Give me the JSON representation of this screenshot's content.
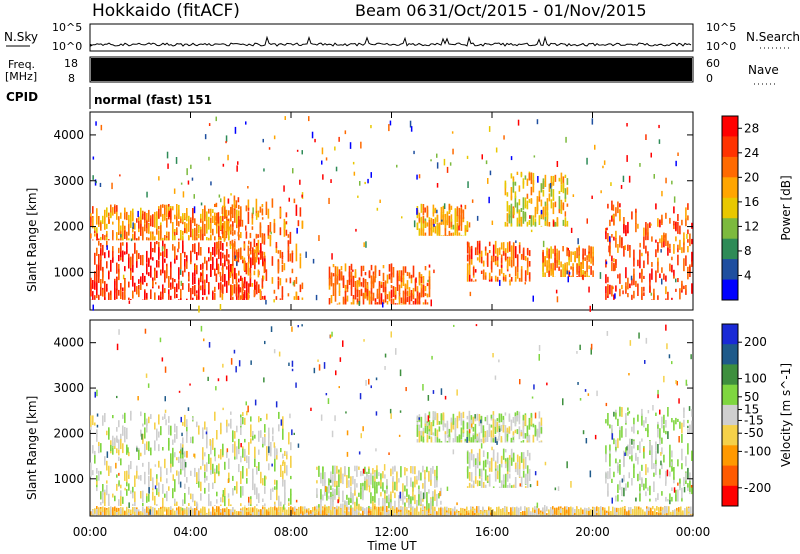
{
  "header": {
    "station": "Hokkaido (fitACF)",
    "beam": "Beam 06",
    "date_range": "31/Oct/2015 - 01/Nov/2015"
  },
  "top_panels": {
    "nsky_label": "N.Sky",
    "nsearch_label": "N.Search",
    "noise_ticks_left": [
      "10^5",
      "10^0"
    ],
    "noise_ticks_right": [
      "10^5",
      "10^0"
    ],
    "freq_label_line1": "Freq.",
    "freq_label_line2": "[MHz]",
    "freq_ticks": [
      "18",
      "8"
    ],
    "nave_label": "Nave",
    "nave_ticks": [
      "60",
      "0"
    ],
    "cpid_label": "CPID",
    "cpid_text": "normal (fast) 151"
  },
  "colors": {
    "power_scale": [
      "#0000ff",
      "#1f4f9f",
      "#2e8b57",
      "#7cba3e",
      "#e8c800",
      "#ffa500",
      "#ff6a00",
      "#ff3300",
      "#ff0000"
    ],
    "velocity_scale": [
      "#1a2ad6",
      "#1f5a8a",
      "#3e8f3e",
      "#7fd640",
      "#cfcfcf",
      "#f5d14a",
      "#ff9900",
      "#ff5a00",
      "#ff0000"
    ]
  },
  "chart_data": [
    {
      "type": "heatmap",
      "title": "Power",
      "xlabel": "Time UT",
      "ylabel": "Slant Range [km]",
      "x_ticks": [
        "00:00",
        "04:00",
        "08:00",
        "12:00",
        "16:00",
        "20:00",
        "00:00"
      ],
      "y_ticks": [
        1000,
        2000,
        3000,
        4000
      ],
      "ylim": [
        180,
        4500
      ],
      "colorbar": {
        "label": "Power [dB]",
        "ticks": [
          4,
          8,
          12,
          16,
          20,
          24,
          28
        ],
        "range": [
          0,
          30
        ]
      },
      "regions": [
        {
          "t": [
            0.0,
            7.0
          ],
          "r": [
            400,
            1700
          ],
          "value": 26
        },
        {
          "t": [
            0.0,
            6.0
          ],
          "r": [
            1700,
            2500
          ],
          "value": 20
        },
        {
          "t": [
            5.0,
            8.5
          ],
          "r": [
            400,
            2700
          ],
          "value": 22
        },
        {
          "t": [
            9.5,
            13.5
          ],
          "r": [
            300,
            1200
          ],
          "value": 22
        },
        {
          "t": [
            13.0,
            15.0
          ],
          "r": [
            1800,
            2500
          ],
          "value": 18
        },
        {
          "t": [
            15.0,
            17.5
          ],
          "r": [
            800,
            1700
          ],
          "value": 22
        },
        {
          "t": [
            18.0,
            20.0
          ],
          "r": [
            900,
            1600
          ],
          "value": 20
        },
        {
          "t": [
            16.5,
            19.0
          ],
          "r": [
            2000,
            3200
          ],
          "value": 16
        },
        {
          "t": [
            20.5,
            24.0
          ],
          "r": [
            400,
            2600
          ],
          "value": 24
        }
      ]
    },
    {
      "type": "heatmap",
      "title": "Velocity",
      "xlabel": "Time UT",
      "ylabel": "Slant Range [km]",
      "x_ticks": [
        "00:00",
        "04:00",
        "08:00",
        "12:00",
        "16:00",
        "20:00",
        "00:00"
      ],
      "y_ticks": [
        1000,
        2000,
        3000,
        4000
      ],
      "ylim": [
        180,
        4500
      ],
      "colorbar": {
        "label": "Velocity [m s^-1]",
        "ticks": [
          200,
          100,
          50,
          15,
          -15,
          -50,
          -100,
          -200
        ],
        "range": [
          -250,
          250
        ]
      },
      "regions": [
        {
          "t": [
            0.0,
            8.0
          ],
          "r": [
            400,
            2500
          ],
          "value": 0
        },
        {
          "t": [
            9.0,
            14.0
          ],
          "r": [
            300,
            1300
          ],
          "value": 0
        },
        {
          "t": [
            13.0,
            18.0
          ],
          "r": [
            1800,
            2500
          ],
          "value": 10
        },
        {
          "t": [
            15.0,
            17.5
          ],
          "r": [
            800,
            1700
          ],
          "value": 0
        },
        {
          "t": [
            20.5,
            24.0
          ],
          "r": [
            500,
            2600
          ],
          "value": 30
        },
        {
          "t": [
            0.0,
            24.0
          ],
          "r": [
            200,
            400
          ],
          "value": -60
        }
      ]
    }
  ]
}
